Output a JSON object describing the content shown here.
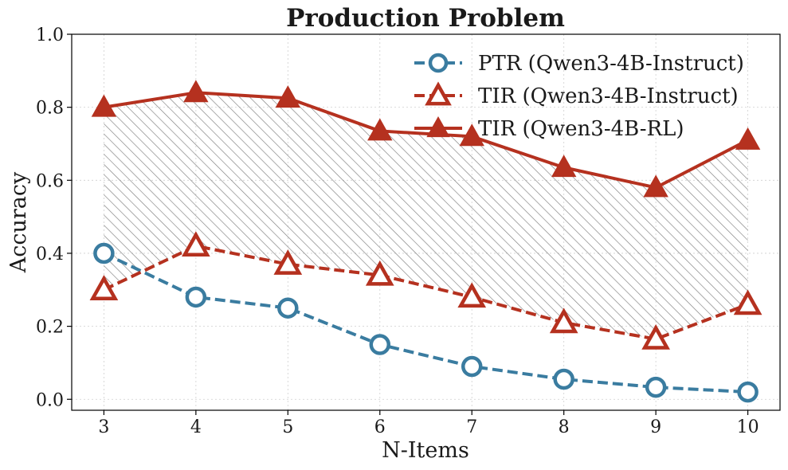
{
  "chart_data": {
    "type": "line",
    "title": "Production Problem",
    "xlabel": "N-Items",
    "ylabel": "Accuracy",
    "x": [
      3,
      4,
      5,
      6,
      7,
      8,
      9,
      10
    ],
    "xlim": [
      2.65,
      10.35
    ],
    "ylim": [
      -0.03,
      1.0
    ],
    "yticks": [
      0.0,
      0.2,
      0.4,
      0.6,
      0.8,
      1.0
    ],
    "ytick_labels": [
      "0.0",
      "0.2",
      "0.4",
      "0.6",
      "0.8",
      "1.0"
    ],
    "xtick_labels": [
      "3",
      "4",
      "5",
      "6",
      "7",
      "8",
      "9",
      "10"
    ],
    "grid": true,
    "legend_position": "top-right",
    "shaded_region": {
      "between": [
        "TIR (Qwen3-4B-Instruct)",
        "TIR (Qwen3-4B-RL)"
      ],
      "pattern": "hatch",
      "color": "#7f7f7f"
    },
    "series": [
      {
        "name": "PTR (Qwen3-4B-Instruct)",
        "values": [
          0.4,
          0.28,
          0.25,
          0.15,
          0.09,
          0.055,
          0.033,
          0.02
        ],
        "color": "#3a7ca0",
        "line": "dashed",
        "marker": "circle-open"
      },
      {
        "name": "TIR (Qwen3-4B-Instruct)",
        "values": [
          0.3,
          0.42,
          0.37,
          0.34,
          0.28,
          0.21,
          0.165,
          0.26
        ],
        "color": "#b5311f",
        "line": "dashed",
        "marker": "triangle-open"
      },
      {
        "name": "TIR (Qwen3-4B-RL)",
        "values": [
          0.8,
          0.84,
          0.825,
          0.735,
          0.72,
          0.635,
          0.58,
          0.71
        ],
        "color": "#b5311f",
        "line": "solid",
        "marker": "triangle-filled"
      }
    ]
  }
}
